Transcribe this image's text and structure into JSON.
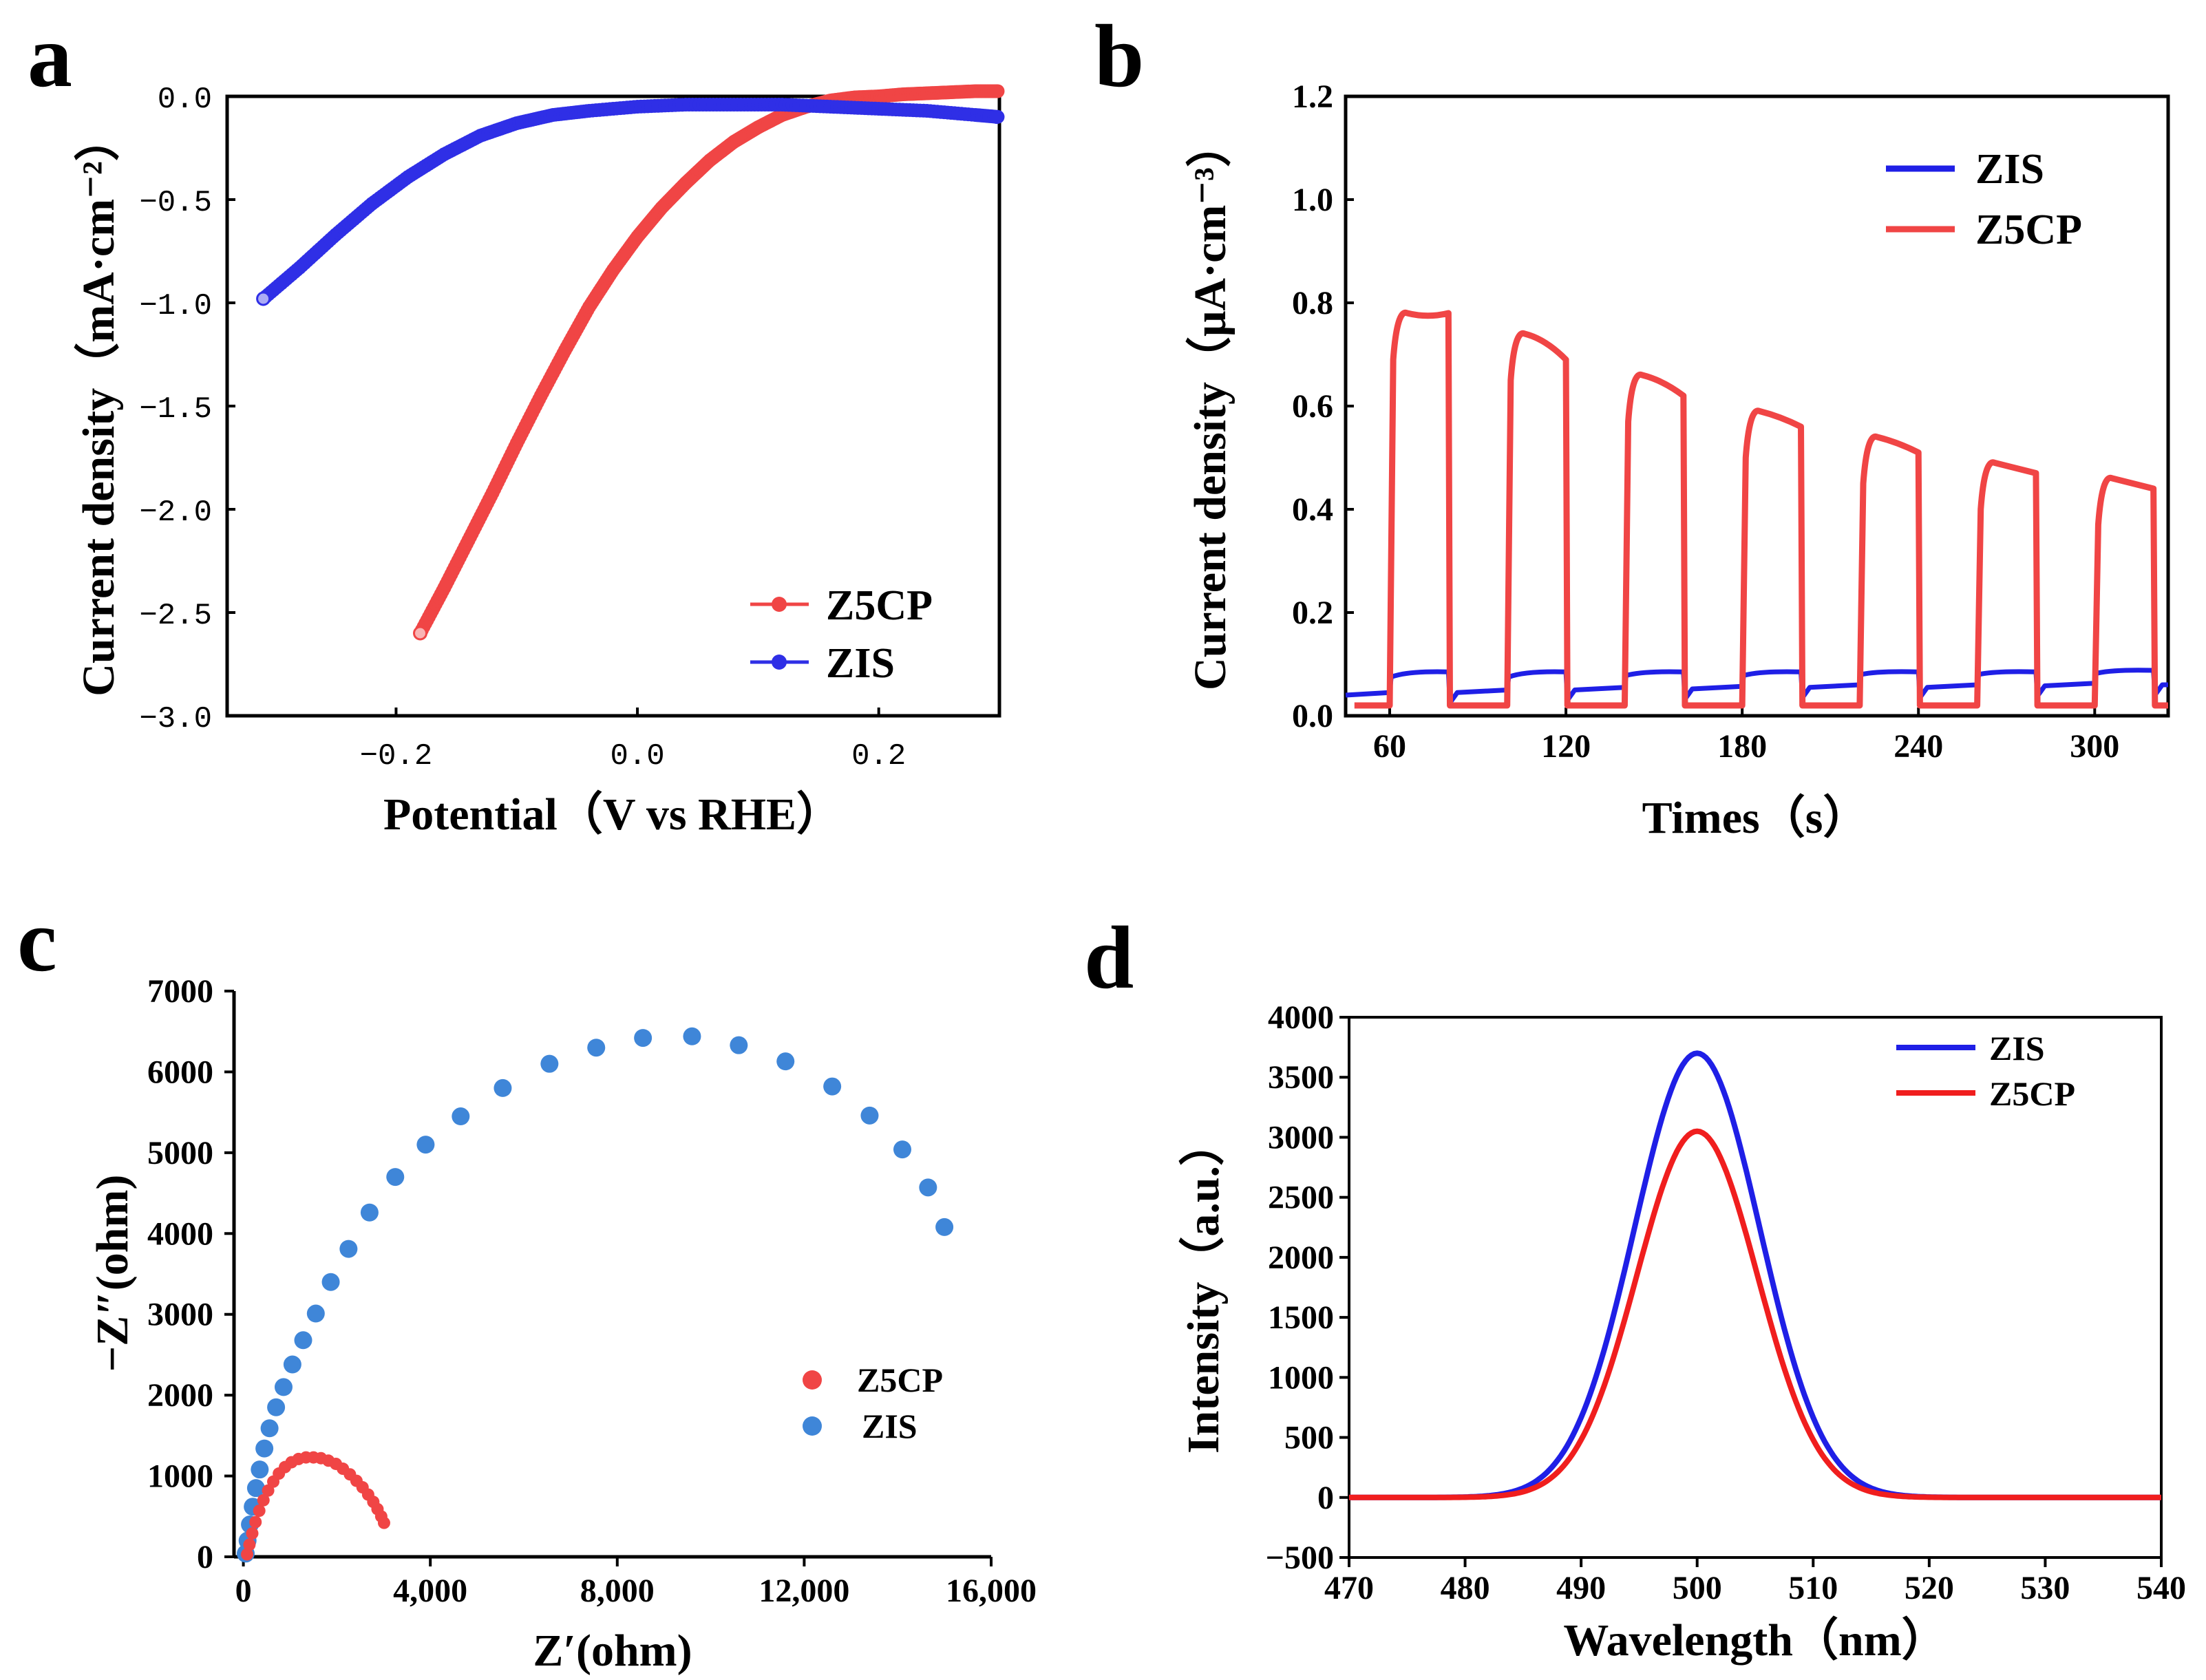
{
  "figure": {
    "title": ""
  },
  "chart_data": [
    {
      "id": "a",
      "panel_label": "a",
      "type": "scatter",
      "xlabel": "Potential（V vs RHE）",
      "ylabel": "Current  density（mA·cm⁻²）",
      "xlim": [
        -0.34,
        0.3
      ],
      "ylim": [
        -3.0,
        0.0
      ],
      "xticks": [
        -0.2,
        0.0,
        0.2
      ],
      "xtick_labels": [
        "−0.2",
        "0.0",
        "0.2"
      ],
      "yticks": [
        0.0,
        -0.5,
        -1.0,
        -1.5,
        -2.0,
        -2.5,
        -3.0
      ],
      "ytick_labels": [
        "0.0",
        "−0.5",
        "−1.0",
        "−1.5",
        "−2.0",
        "−2.5",
        "−3.0"
      ],
      "legend": {
        "position": "bottom-right",
        "entries": [
          "Z5CP",
          "ZIS"
        ]
      },
      "series": [
        {
          "name": "Z5CP",
          "color": "#f04545",
          "x": [
            -0.18,
            -0.16,
            -0.14,
            -0.12,
            -0.1,
            -0.08,
            -0.06,
            -0.04,
            -0.02,
            0.0,
            0.02,
            0.04,
            0.06,
            0.08,
            0.1,
            0.12,
            0.14,
            0.16,
            0.18,
            0.2,
            0.22,
            0.24,
            0.26,
            0.28,
            0.3
          ],
          "y": [
            -2.6,
            -2.38,
            -2.15,
            -1.92,
            -1.68,
            -1.45,
            -1.23,
            -1.02,
            -0.84,
            -0.68,
            -0.54,
            -0.42,
            -0.31,
            -0.22,
            -0.15,
            -0.09,
            -0.05,
            -0.02,
            -0.005,
            0.0,
            0.01,
            0.015,
            0.02,
            0.025,
            0.025
          ]
        },
        {
          "name": "ZIS",
          "color": "#2f2fe6",
          "x": [
            -0.31,
            -0.28,
            -0.25,
            -0.22,
            -0.19,
            -0.16,
            -0.13,
            -0.1,
            -0.07,
            -0.04,
            0.0,
            0.04,
            0.08,
            0.12,
            0.16,
            0.2,
            0.24,
            0.28,
            0.3
          ],
          "y": [
            -0.98,
            -0.83,
            -0.67,
            -0.52,
            -0.39,
            -0.28,
            -0.19,
            -0.13,
            -0.09,
            -0.07,
            -0.05,
            -0.04,
            -0.04,
            -0.04,
            -0.05,
            -0.06,
            -0.07,
            -0.09,
            -0.1
          ]
        }
      ]
    },
    {
      "id": "b",
      "panel_label": "b",
      "type": "line",
      "xlabel": "Times（s）",
      "ylabel": "Current density（μA·cm⁻³）",
      "xlim": [
        45,
        325
      ],
      "ylim": [
        0.0,
        1.2
      ],
      "xticks": [
        60,
        120,
        180,
        240,
        300
      ],
      "xtick_labels": [
        "60",
        "120",
        "180",
        "240",
        "300"
      ],
      "yticks": [
        0.0,
        0.2,
        0.4,
        0.6,
        0.8,
        1.0,
        1.2
      ],
      "ytick_labels": [
        "0.0",
        "0.2",
        "0.4",
        "0.6",
        "0.8",
        "1.0",
        "1.2"
      ],
      "legend": {
        "position": "top-right",
        "entries": [
          "ZIS",
          "Z5CP"
        ]
      },
      "light_on_intervals": [
        [
          60,
          80
        ],
        [
          100,
          120
        ],
        [
          140,
          160
        ],
        [
          180,
          200
        ],
        [
          220,
          240
        ],
        [
          260,
          280
        ],
        [
          300,
          320
        ]
      ],
      "series": [
        {
          "name": "Z5CP",
          "color": "#f04545",
          "baseline": 0.02,
          "on_start": [
            0.77,
            0.73,
            0.65,
            0.58,
            0.53,
            0.48,
            0.45
          ],
          "on_end": [
            0.78,
            0.69,
            0.62,
            0.56,
            0.51,
            0.47,
            0.44
          ]
        },
        {
          "name": "ZIS",
          "color": "#1f1fe6",
          "off_values": [
            0.04,
            0.045,
            0.05,
            0.052,
            0.055,
            0.055,
            0.058,
            0.06
          ],
          "on_start": [
            0.075,
            0.075,
            0.078,
            0.078,
            0.08,
            0.08,
            0.082
          ],
          "on_end": [
            0.085,
            0.085,
            0.085,
            0.085,
            0.085,
            0.085,
            0.088
          ]
        }
      ]
    },
    {
      "id": "c",
      "panel_label": "c",
      "type": "scatter",
      "xlabel": "Z′(ohm)",
      "ylabel": "−Z″(ohm)",
      "xlim": [
        -200,
        16000
      ],
      "ylim": [
        0,
        7000
      ],
      "xticks": [
        0,
        4000,
        8000,
        12000,
        16000
      ],
      "xtick_labels": [
        "0",
        "4,000",
        "8,000",
        "12,000",
        "16,000"
      ],
      "yticks": [
        0,
        1000,
        2000,
        3000,
        4000,
        5000,
        6000,
        7000
      ],
      "ytick_labels": [
        "0",
        "1000",
        "2000",
        "3000",
        "4000",
        "5000",
        "6000",
        "7000"
      ],
      "legend": {
        "position": "bottom-right",
        "entries": [
          "Z5CP",
          "ZIS"
        ]
      },
      "series": [
        {
          "name": "ZIS",
          "color": "#3f86d8",
          "x": [
            50,
            90,
            140,
            200,
            270,
            350,
            450,
            560,
            700,
            860,
            1050,
            1280,
            1550,
            1870,
            2250,
            2700,
            3250,
            3900,
            4650,
            5550,
            6550,
            7550,
            8550,
            9600,
            10600,
            11600,
            12600,
            13400,
            14100,
            14650,
            15000
          ],
          "y": [
            40,
            200,
            400,
            620,
            850,
            1080,
            1340,
            1590,
            1850,
            2100,
            2380,
            2680,
            3010,
            3400,
            3810,
            4260,
            4700,
            5100,
            5450,
            5800,
            6100,
            6300,
            6420,
            6440,
            6330,
            6130,
            5820,
            5460,
            5040,
            4570,
            4080
          ]
        },
        {
          "name": "Z5CP",
          "color": "#f04545",
          "x": [
            80,
            130,
            190,
            260,
            340,
            430,
            530,
            640,
            760,
            890,
            1030,
            1180,
            1340,
            1500,
            1660,
            1820,
            1980,
            2130,
            2280,
            2420,
            2550,
            2670,
            2780,
            2870,
            2950,
            3010
          ],
          "y": [
            30,
            150,
            290,
            430,
            570,
            700,
            820,
            930,
            1030,
            1110,
            1170,
            1210,
            1230,
            1230,
            1220,
            1190,
            1150,
            1090,
            1020,
            940,
            860,
            770,
            680,
            590,
            500,
            420
          ]
        }
      ]
    },
    {
      "id": "d",
      "panel_label": "d",
      "type": "line",
      "xlabel": "Wavelength（nm）",
      "ylabel": "Intensity（a.u.）",
      "xlim": [
        470,
        540
      ],
      "ylim": [
        -500,
        4000
      ],
      "xticks": [
        470,
        480,
        490,
        500,
        510,
        520,
        530,
        540
      ],
      "xtick_labels": [
        "470",
        "480",
        "490",
        "500",
        "510",
        "520",
        "530",
        "540"
      ],
      "yticks": [
        -500,
        0,
        500,
        1000,
        1500,
        2000,
        2500,
        3000,
        3500,
        4000
      ],
      "ytick_labels": [
        "−500",
        "0",
        "500",
        "1000",
        "1500",
        "2000",
        "2500",
        "3000",
        "3500",
        "4000"
      ],
      "legend": {
        "position": "top-right",
        "entries": [
          "ZIS",
          "Z5CP"
        ]
      },
      "series": [
        {
          "name": "ZIS",
          "color": "#1f1fe6",
          "peak": 3700,
          "center": 500,
          "width": 5.4
        },
        {
          "name": "Z5CP",
          "color": "#f01e1e",
          "peak": 3050,
          "center": 500,
          "width": 5.2
        }
      ]
    }
  ]
}
